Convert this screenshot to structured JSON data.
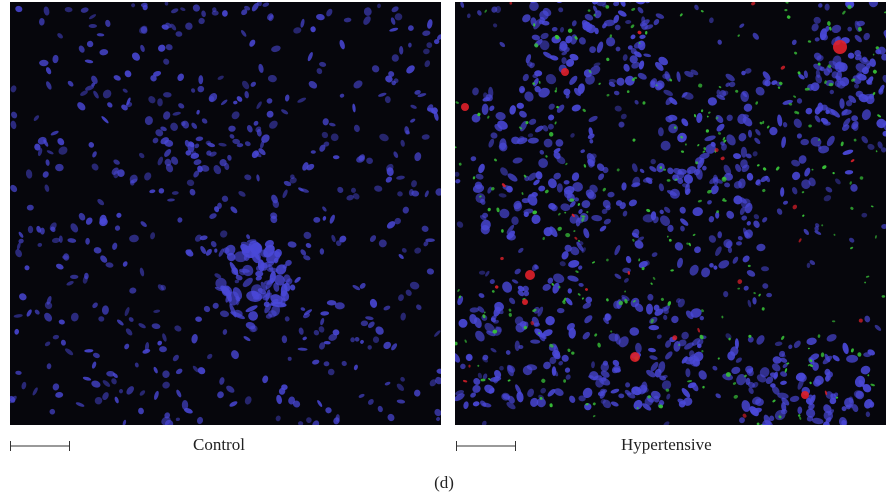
{
  "figure": {
    "label": "(d)",
    "panels": [
      {
        "caption": "Control",
        "has_scale_bar": true
      },
      {
        "caption": "Hypertensive",
        "has_scale_bar": true
      }
    ]
  },
  "colors": {
    "background": "#06060c",
    "nuclei_stain": "#4a48d8",
    "green_stain": "#38c038",
    "red_stain": "#e0202a"
  }
}
